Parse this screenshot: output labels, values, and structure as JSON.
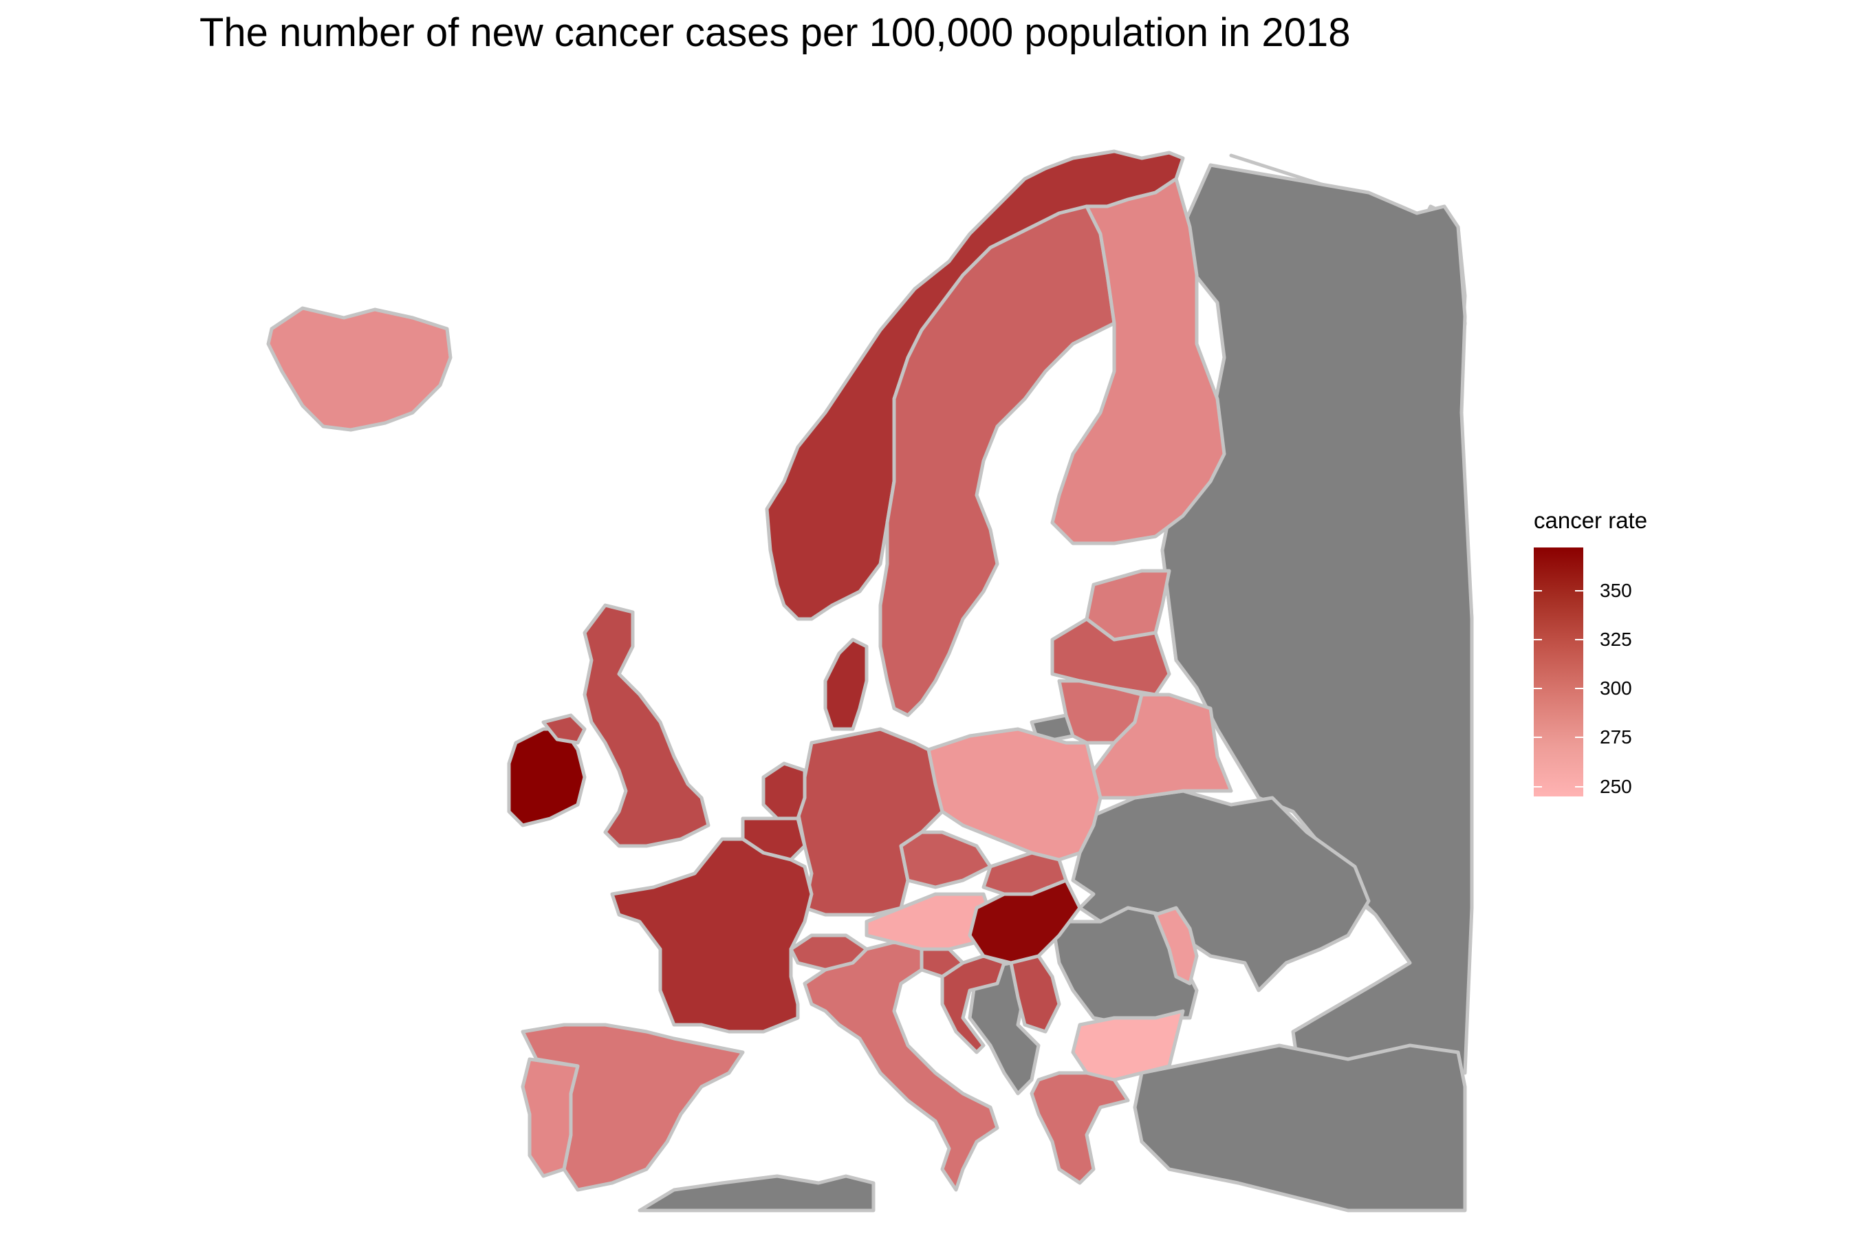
{
  "title": "The number of new cancer cases per 100,000 population in 2018",
  "legend": {
    "title": "cancer rate",
    "min": 245,
    "max": 372,
    "ticks": [
      {
        "value": 350,
        "label": "350"
      },
      {
        "value": 325,
        "label": "325"
      },
      {
        "value": 300,
        "label": "300"
      },
      {
        "value": 275,
        "label": "275"
      },
      {
        "value": 250,
        "label": "250"
      }
    ],
    "colors": {
      "high": "#8B0000",
      "low": "#FFB3B3"
    }
  },
  "colors": {
    "no_data": "#808080",
    "border": "#C4C4C4",
    "background": "#FFFFFF"
  },
  "countries": [
    {
      "name": "Iceland",
      "rate": 272
    },
    {
      "name": "Ireland",
      "rate": 372
    },
    {
      "name": "United Kingdom",
      "rate": 319
    },
    {
      "name": "Norway",
      "rate": 335
    },
    {
      "name": "Sweden",
      "rate": 303
    },
    {
      "name": "Finland",
      "rate": 277
    },
    {
      "name": "Denmark",
      "rate": 341
    },
    {
      "name": "Estonia",
      "rate": 285
    },
    {
      "name": "Latvia",
      "rate": 305
    },
    {
      "name": "Lithuania",
      "rate": 292
    },
    {
      "name": "Belarus",
      "rate": 270
    },
    {
      "name": "Poland",
      "rate": 264
    },
    {
      "name": "Germany",
      "rate": 316
    },
    {
      "name": "Netherlands",
      "rate": 334
    },
    {
      "name": "Belgium",
      "rate": 337
    },
    {
      "name": "France",
      "rate": 338
    },
    {
      "name": "Czechia",
      "rate": 306
    },
    {
      "name": "Slovakia",
      "rate": 308
    },
    {
      "name": "Austria",
      "rate": 252
    },
    {
      "name": "Hungary",
      "rate": 368
    },
    {
      "name": "Switzerland",
      "rate": 311
    },
    {
      "name": "Italy",
      "rate": 291
    },
    {
      "name": "Slovenia",
      "rate": 313
    },
    {
      "name": "Croatia",
      "rate": 319
    },
    {
      "name": "Serbia",
      "rate": 318
    },
    {
      "name": "Moldova",
      "rate": 262
    },
    {
      "name": "Bulgaria",
      "rate": 248
    },
    {
      "name": "Greece",
      "rate": 293
    },
    {
      "name": "Spain",
      "rate": 288
    },
    {
      "name": "Portugal",
      "rate": 276
    }
  ]
}
